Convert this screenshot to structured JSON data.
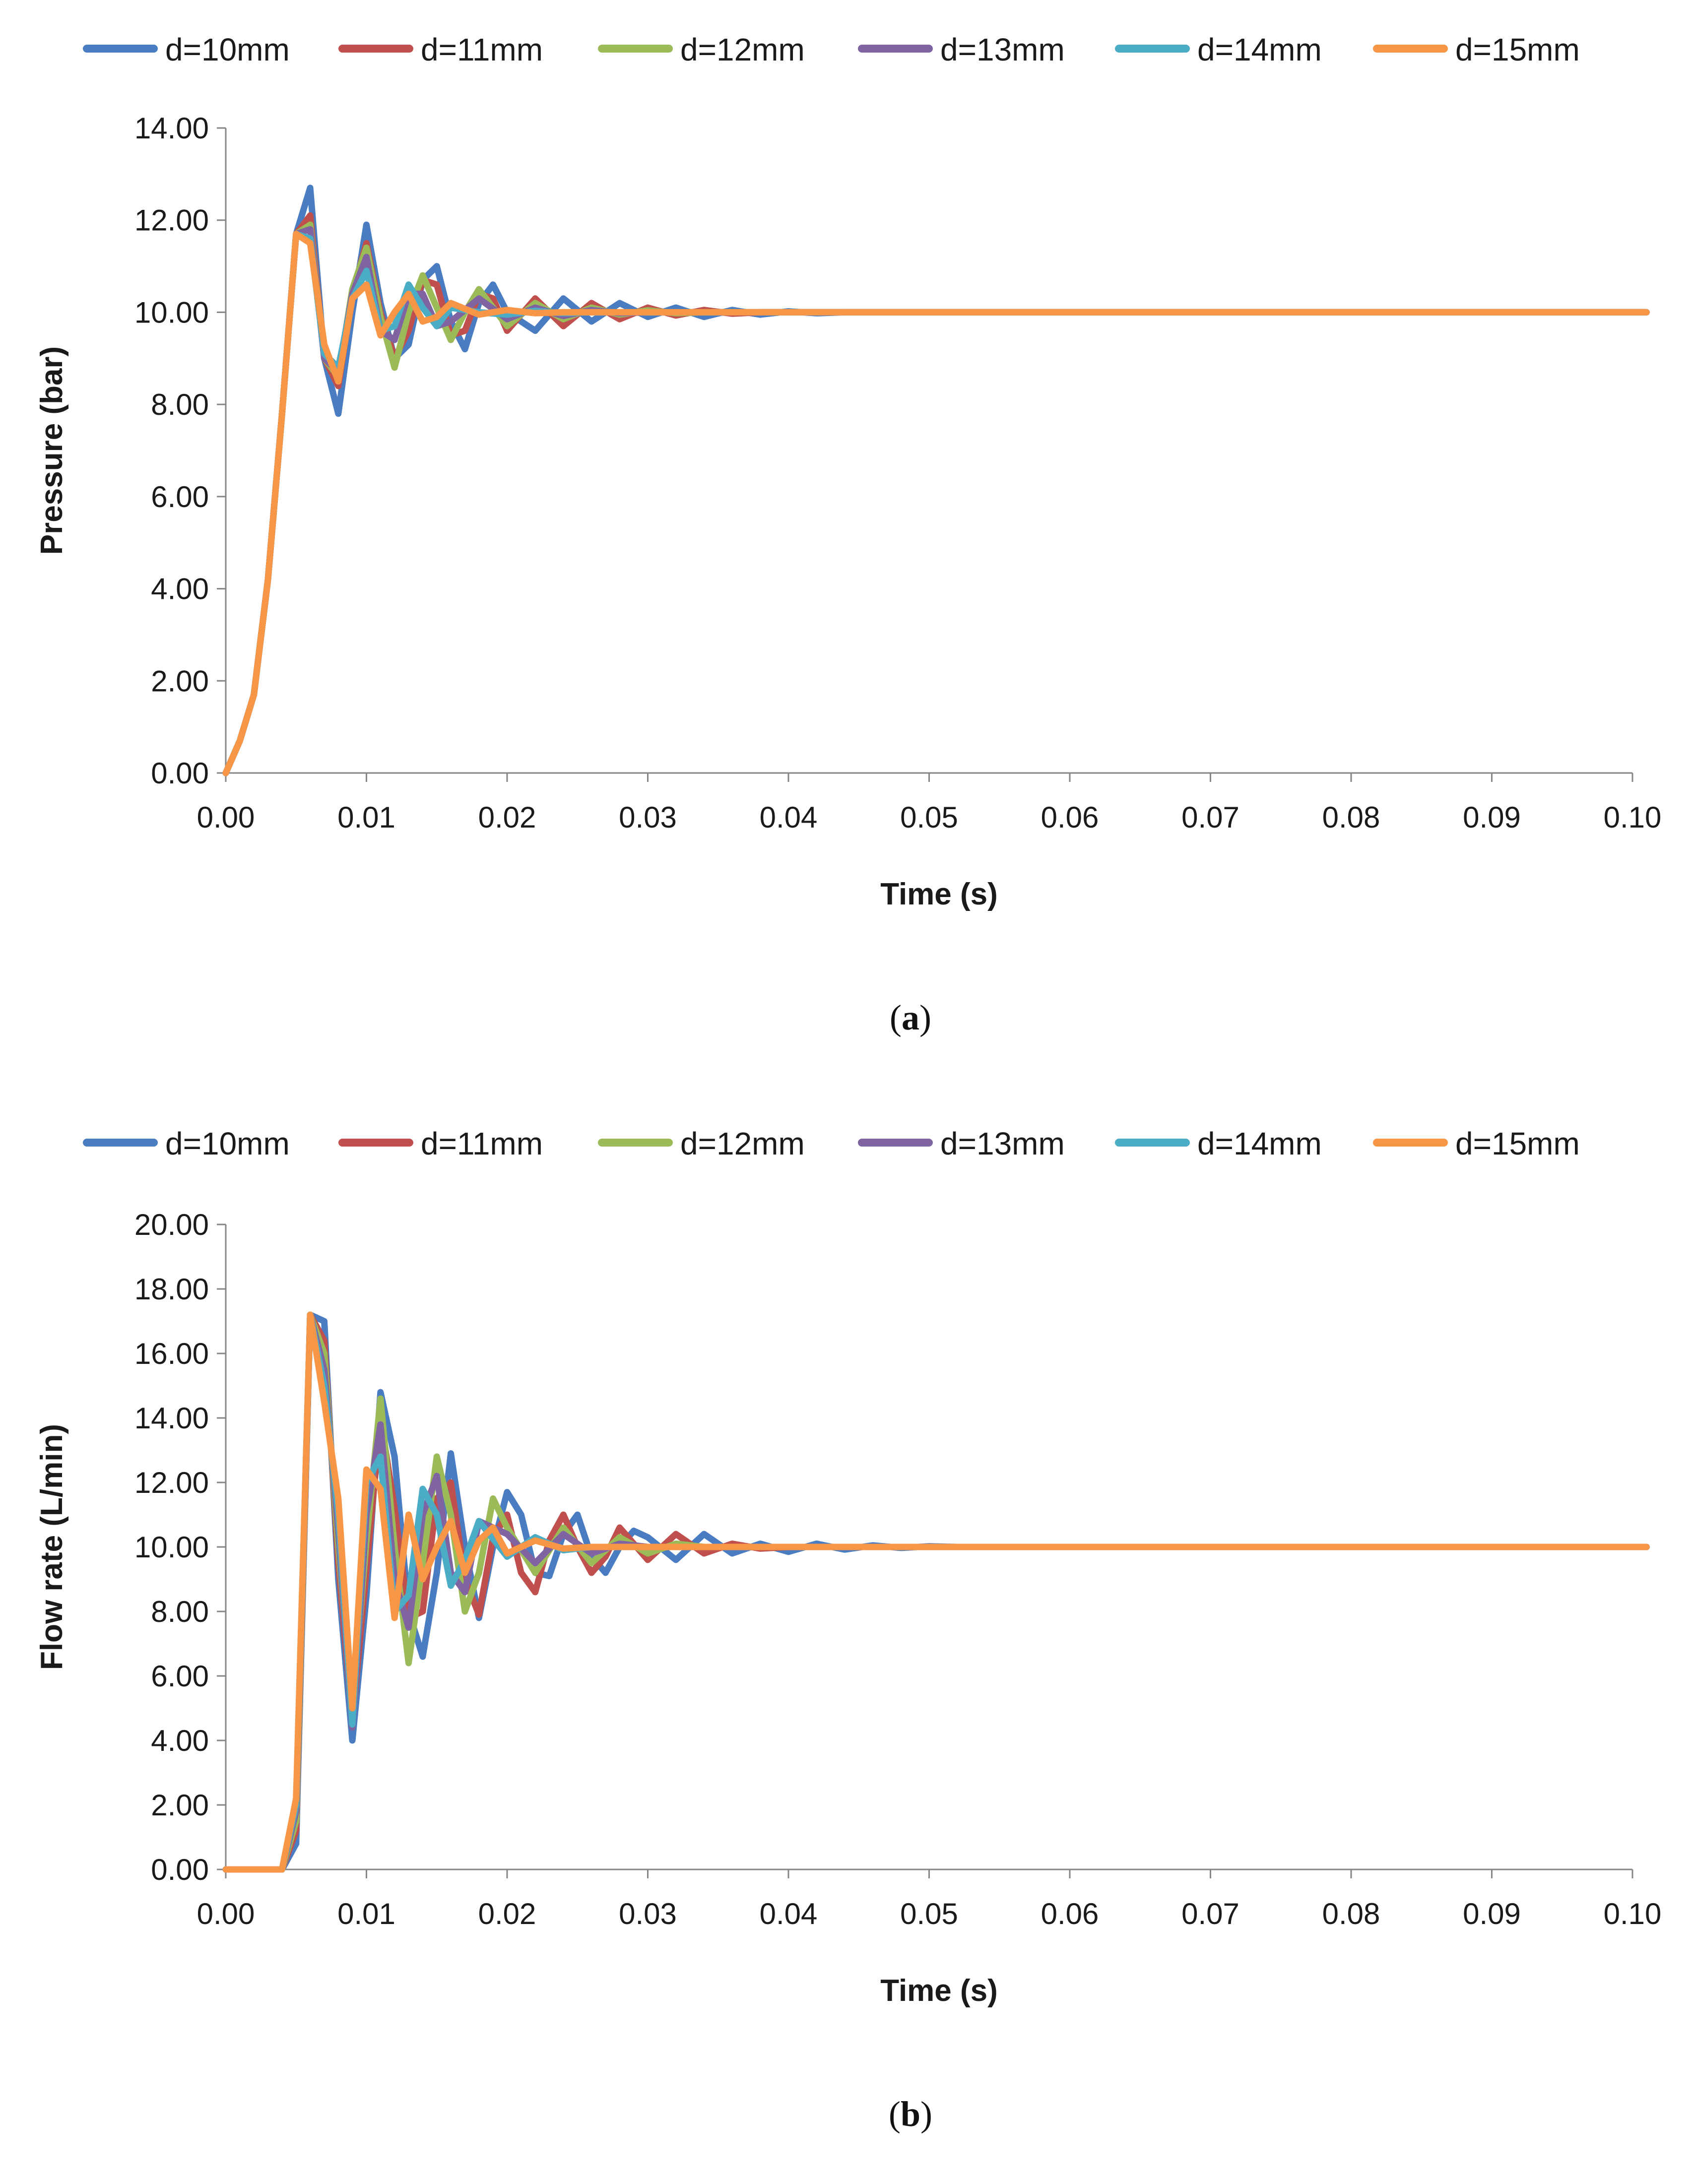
{
  "chart_data": [
    {
      "type": "line",
      "caption_letter": "a",
      "xlabel": "Time (s)",
      "ylabel": "Pressure (bar)",
      "xlim": [
        0,
        0.1
      ],
      "ylim": [
        0,
        14
      ],
      "xticks": [
        "0.00",
        "0.01",
        "0.02",
        "0.03",
        "0.04",
        "0.05",
        "0.06",
        "0.07",
        "0.08",
        "0.09",
        "0.10"
      ],
      "yticks": [
        "0.00",
        "2.00",
        "4.00",
        "6.00",
        "8.00",
        "10.00",
        "12.00",
        "14.00"
      ],
      "series": [
        {
          "name": "d=10mm",
          "color": "#4a7cc1",
          "x": [
            0,
            0.001,
            0.002,
            0.003,
            0.004,
            0.005,
            0.006,
            0.007,
            0.008,
            0.009,
            0.01,
            0.011,
            0.012,
            0.013,
            0.014,
            0.015,
            0.016,
            0.017,
            0.018,
            0.019,
            0.02,
            0.022,
            0.024,
            0.026,
            0.028,
            0.03,
            0.032,
            0.034,
            0.036,
            0.038,
            0.04,
            0.042,
            0.044,
            0.046,
            0.05,
            0.101
          ],
          "y": [
            0,
            0.7,
            1.7,
            4.2,
            7.8,
            11.7,
            12.7,
            9.0,
            7.8,
            10.0,
            11.9,
            10.2,
            9.0,
            9.3,
            10.7,
            11.0,
            9.8,
            9.2,
            10.2,
            10.6,
            10.0,
            9.6,
            10.3,
            9.8,
            10.2,
            9.9,
            10.1,
            9.9,
            10.05,
            9.95,
            10.02,
            9.98,
            10.0,
            10.0,
            10.0,
            10.0
          ]
        },
        {
          "name": "d=11mm",
          "color": "#c0504d",
          "x": [
            0,
            0.001,
            0.002,
            0.003,
            0.004,
            0.005,
            0.006,
            0.007,
            0.008,
            0.009,
            0.01,
            0.011,
            0.012,
            0.013,
            0.014,
            0.015,
            0.016,
            0.017,
            0.018,
            0.019,
            0.02,
            0.022,
            0.024,
            0.026,
            0.028,
            0.03,
            0.032,
            0.034,
            0.036,
            0.038,
            0.04,
            0.101
          ],
          "y": [
            0,
            0.7,
            1.7,
            4.2,
            7.8,
            11.7,
            12.1,
            9.0,
            8.4,
            10.4,
            11.5,
            10.0,
            9.0,
            9.6,
            10.7,
            10.6,
            9.5,
            9.6,
            10.4,
            10.3,
            9.6,
            10.3,
            9.7,
            10.2,
            9.85,
            10.1,
            9.93,
            10.05,
            9.97,
            10.0,
            10.0,
            10.0
          ]
        },
        {
          "name": "d=12mm",
          "color": "#9bbb59",
          "x": [
            0,
            0.001,
            0.002,
            0.003,
            0.004,
            0.005,
            0.006,
            0.007,
            0.008,
            0.009,
            0.01,
            0.011,
            0.012,
            0.013,
            0.014,
            0.015,
            0.016,
            0.017,
            0.018,
            0.02,
            0.022,
            0.024,
            0.026,
            0.028,
            0.03,
            0.032,
            0.034,
            0.036,
            0.101
          ],
          "y": [
            0,
            0.7,
            1.7,
            4.2,
            7.8,
            11.7,
            11.9,
            9.0,
            8.6,
            10.5,
            11.4,
            9.9,
            8.8,
            10.0,
            10.8,
            10.1,
            9.4,
            10.0,
            10.5,
            9.7,
            10.2,
            9.85,
            10.1,
            9.95,
            10.04,
            9.98,
            10.0,
            10.0,
            10.0
          ]
        },
        {
          "name": "d=13mm",
          "color": "#8064a2",
          "x": [
            0,
            0.001,
            0.002,
            0.003,
            0.004,
            0.005,
            0.006,
            0.007,
            0.008,
            0.009,
            0.01,
            0.011,
            0.012,
            0.013,
            0.014,
            0.015,
            0.016,
            0.018,
            0.02,
            0.022,
            0.024,
            0.026,
            0.028,
            0.03,
            0.101
          ],
          "y": [
            0,
            0.7,
            1.7,
            4.2,
            7.8,
            11.7,
            11.8,
            9.0,
            8.7,
            10.4,
            11.2,
            9.6,
            9.4,
            10.4,
            10.4,
            9.7,
            9.8,
            10.3,
            9.85,
            10.1,
            9.92,
            10.05,
            9.98,
            10.0,
            10.0
          ]
        },
        {
          "name": "d=14mm",
          "color": "#4bacc6",
          "x": [
            0,
            0.001,
            0.002,
            0.003,
            0.004,
            0.005,
            0.006,
            0.007,
            0.008,
            0.009,
            0.01,
            0.011,
            0.012,
            0.013,
            0.014,
            0.015,
            0.016,
            0.018,
            0.02,
            0.022,
            0.024,
            0.026,
            0.101
          ],
          "y": [
            0,
            0.7,
            1.7,
            4.2,
            7.8,
            11.7,
            11.6,
            9.1,
            8.8,
            10.3,
            10.9,
            9.6,
            9.7,
            10.6,
            10.1,
            9.7,
            10.1,
            10.0,
            9.95,
            10.03,
            9.98,
            10.0,
            10.0
          ]
        },
        {
          "name": "d=15mm",
          "color": "#f79646",
          "x": [
            0,
            0.001,
            0.002,
            0.003,
            0.004,
            0.005,
            0.006,
            0.007,
            0.008,
            0.009,
            0.01,
            0.011,
            0.012,
            0.013,
            0.014,
            0.015,
            0.016,
            0.018,
            0.02,
            0.022,
            0.024,
            0.101
          ],
          "y": [
            0,
            0.7,
            1.7,
            4.2,
            7.8,
            11.7,
            11.5,
            9.3,
            8.5,
            10.3,
            10.6,
            9.5,
            10.0,
            10.4,
            9.8,
            9.9,
            10.2,
            9.95,
            10.05,
            9.98,
            10.0,
            10.0
          ]
        }
      ]
    },
    {
      "type": "line",
      "caption_letter": "b",
      "xlabel": "Time (s)",
      "ylabel": "Flow rate (L/min)",
      "xlim": [
        0,
        0.1
      ],
      "ylim": [
        0,
        20
      ],
      "xticks": [
        "0.00",
        "0.01",
        "0.02",
        "0.03",
        "0.04",
        "0.05",
        "0.06",
        "0.07",
        "0.08",
        "0.09",
        "0.10"
      ],
      "yticks": [
        "0.00",
        "2.00",
        "4.00",
        "6.00",
        "8.00",
        "10.00",
        "12.00",
        "14.00",
        "16.00",
        "18.00",
        "20.00"
      ],
      "series": [
        {
          "name": "d=10mm",
          "color": "#4a7cc1",
          "x": [
            0,
            0.004,
            0.005,
            0.006,
            0.007,
            0.008,
            0.009,
            0.01,
            0.011,
            0.012,
            0.013,
            0.014,
            0.015,
            0.016,
            0.017,
            0.018,
            0.019,
            0.02,
            0.021,
            0.022,
            0.023,
            0.024,
            0.025,
            0.026,
            0.027,
            0.028,
            0.029,
            0.03,
            0.032,
            0.034,
            0.036,
            0.038,
            0.04,
            0.042,
            0.044,
            0.046,
            0.048,
            0.05,
            0.052,
            0.101
          ],
          "y": [
            0,
            0,
            0.8,
            17.2,
            17.0,
            9.0,
            4.0,
            8.5,
            14.8,
            12.8,
            8.0,
            6.6,
            9.2,
            12.9,
            10.0,
            7.8,
            10.0,
            11.7,
            11.0,
            9.2,
            9.1,
            10.4,
            11.0,
            9.7,
            9.2,
            10.0,
            10.5,
            10.3,
            9.6,
            10.4,
            9.8,
            10.1,
            9.85,
            10.1,
            9.92,
            10.05,
            9.97,
            10.02,
            10.0,
            10.0
          ]
        },
        {
          "name": "d=11mm",
          "color": "#c0504d",
          "x": [
            0,
            0.004,
            0.005,
            0.006,
            0.007,
            0.008,
            0.009,
            0.01,
            0.011,
            0.012,
            0.013,
            0.014,
            0.015,
            0.016,
            0.017,
            0.018,
            0.019,
            0.02,
            0.021,
            0.022,
            0.023,
            0.024,
            0.025,
            0.026,
            0.027,
            0.028,
            0.03,
            0.032,
            0.034,
            0.036,
            0.038,
            0.04,
            0.101
          ],
          "y": [
            0,
            0,
            1.2,
            17.2,
            16.4,
            9.5,
            4.6,
            9.3,
            14.0,
            11.2,
            7.8,
            8.0,
            11.5,
            12.0,
            9.0,
            7.9,
            10.3,
            11.0,
            9.2,
            8.6,
            10.2,
            11.0,
            10.0,
            9.2,
            9.7,
            10.6,
            9.6,
            10.4,
            9.8,
            10.1,
            9.95,
            10.0,
            10.0
          ]
        },
        {
          "name": "d=12mm",
          "color": "#9bbb59",
          "x": [
            0,
            0.004,
            0.005,
            0.006,
            0.007,
            0.008,
            0.009,
            0.01,
            0.011,
            0.012,
            0.013,
            0.014,
            0.015,
            0.016,
            0.017,
            0.018,
            0.019,
            0.02,
            0.022,
            0.024,
            0.026,
            0.028,
            0.03,
            0.032,
            0.034,
            0.101
          ],
          "y": [
            0,
            0,
            1.5,
            17.2,
            16.0,
            10.0,
            5.0,
            10.2,
            14.6,
            10.0,
            6.4,
            9.5,
            12.8,
            11.0,
            8.0,
            9.2,
            11.5,
            10.6,
            9.2,
            10.6,
            9.5,
            10.3,
            9.8,
            10.1,
            10.0,
            10.0
          ]
        },
        {
          "name": "d=13mm",
          "color": "#8064a2",
          "x": [
            0,
            0.004,
            0.005,
            0.006,
            0.007,
            0.008,
            0.009,
            0.01,
            0.011,
            0.012,
            0.013,
            0.014,
            0.015,
            0.016,
            0.017,
            0.018,
            0.02,
            0.022,
            0.024,
            0.026,
            0.028,
            0.03,
            0.101
          ],
          "y": [
            0,
            0,
            1.8,
            17.2,
            15.5,
            10.5,
            4.4,
            11.0,
            13.8,
            9.0,
            7.5,
            11.0,
            12.2,
            9.2,
            8.6,
            10.8,
            10.4,
            9.5,
            10.4,
            9.8,
            10.1,
            10.0,
            10.0
          ]
        },
        {
          "name": "d=14mm",
          "color": "#4bacc6",
          "x": [
            0,
            0.004,
            0.005,
            0.006,
            0.007,
            0.008,
            0.009,
            0.01,
            0.011,
            0.012,
            0.013,
            0.014,
            0.015,
            0.016,
            0.017,
            0.018,
            0.02,
            0.022,
            0.024,
            0.026,
            0.101
          ],
          "y": [
            0,
            0,
            2.0,
            17.2,
            15.0,
            11.0,
            4.5,
            12.0,
            12.8,
            8.0,
            8.5,
            11.8,
            11.0,
            8.8,
            9.6,
            10.8,
            9.7,
            10.3,
            9.9,
            10.0,
            10.0
          ]
        },
        {
          "name": "d=15mm",
          "color": "#f79646",
          "x": [
            0,
            0.004,
            0.005,
            0.006,
            0.007,
            0.008,
            0.009,
            0.01,
            0.011,
            0.012,
            0.013,
            0.014,
            0.015,
            0.016,
            0.017,
            0.018,
            0.019,
            0.02,
            0.021,
            0.022,
            0.024,
            0.026,
            0.101
          ],
          "y": [
            0,
            0,
            2.2,
            17.2,
            14.5,
            11.5,
            5.0,
            12.4,
            11.8,
            7.8,
            11.0,
            9.0,
            10.0,
            10.8,
            9.2,
            10.2,
            10.6,
            9.8,
            10.0,
            10.2,
            9.95,
            10.0,
            10.0
          ]
        }
      ]
    }
  ]
}
